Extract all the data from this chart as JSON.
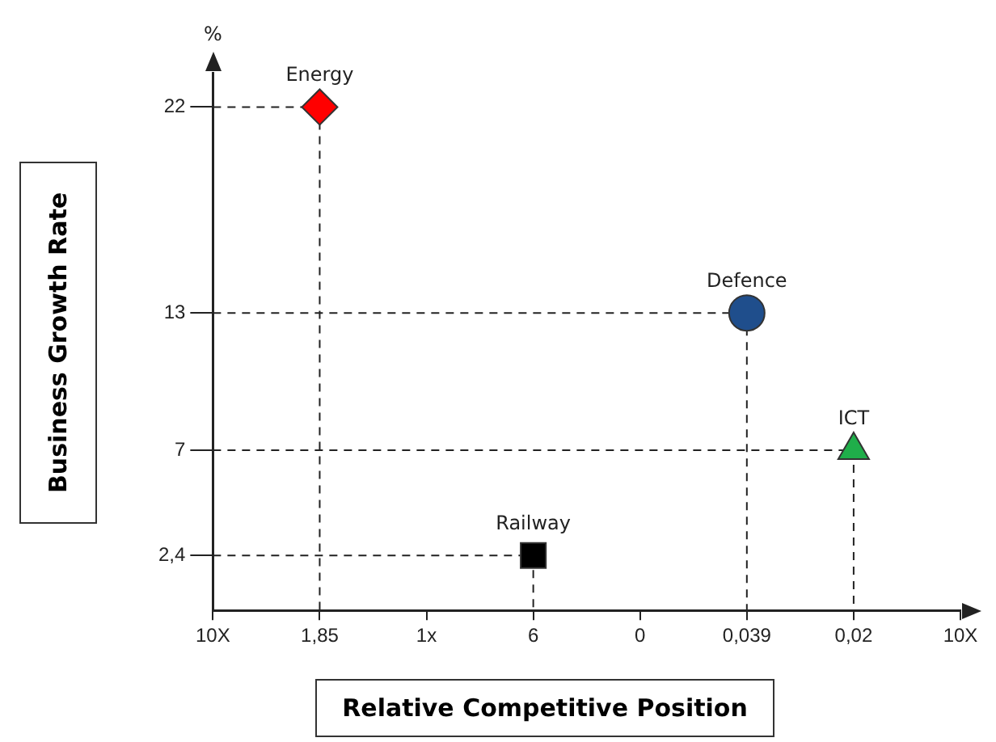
{
  "chart_data": {
    "type": "scatter",
    "xlabel": "Relative Competitive Position",
    "ylabel": "Business Growth Rate",
    "annotations": [
      "%"
    ],
    "categories": [
      "10X",
      "1,85",
      "1x",
      "6",
      "0",
      "0,039",
      "0,02",
      "10X"
    ],
    "ylim": [
      0,
      23.5
    ],
    "yticks": [
      {
        "value": 2.4,
        "label": "2,4"
      },
      7,
      13,
      22
    ],
    "grid": true,
    "legend": false,
    "line_style": "dashed",
    "series": [
      {
        "name": "Energy",
        "color": "#ff0000",
        "marker": "diamond",
        "x": [
          "1,85"
        ],
        "values": [
          22
        ]
      },
      {
        "name": "Railway",
        "color": "#000000",
        "marker": "square",
        "x": [
          "6"
        ],
        "values": [
          2.4
        ]
      },
      {
        "name": "Defence",
        "color": "#1f4e8c",
        "marker": "circle",
        "x": [
          "0,039"
        ],
        "values": [
          13
        ]
      },
      {
        "name": "ICT",
        "color": "#1fae4a",
        "marker": "triangle",
        "x": [
          "0,02"
        ],
        "values": [
          7
        ]
      }
    ]
  }
}
